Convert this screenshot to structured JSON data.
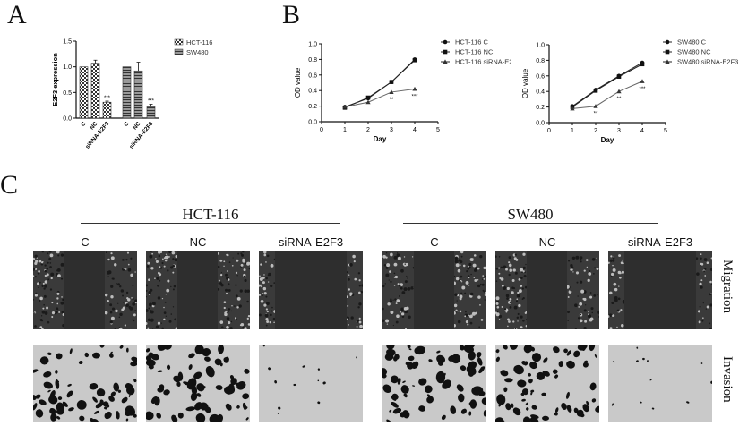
{
  "panels": {
    "a": "A",
    "b": "B",
    "c": "C"
  },
  "chart_data": [
    {
      "type": "bar",
      "ylabel": "E2F3 expression",
      "ylim": [
        0,
        1.5
      ],
      "yticks": [
        "0.0",
        "0.5",
        "1.0",
        "1.5"
      ],
      "categories": [
        "C",
        "NC",
        "siRNA-E2F3"
      ],
      "series": [
        {
          "name": "HCT-116",
          "values": [
            1.0,
            1.07,
            0.31
          ],
          "errors": [
            0,
            0.06,
            0.02
          ],
          "annotations": [
            "",
            "",
            "***"
          ]
        },
        {
          "name": "SW480",
          "values": [
            1.0,
            0.92,
            0.22
          ],
          "errors": [
            0,
            0.17,
            0.05
          ],
          "annotations": [
            "",
            "",
            "***"
          ]
        }
      ],
      "legend": "top-right"
    },
    {
      "type": "line",
      "xlabel": "Day",
      "ylabel": "OD value",
      "xlim": [
        0,
        5
      ],
      "ylim": [
        0,
        1.0
      ],
      "xticks": [
        "0",
        "1",
        "2",
        "3",
        "4",
        "5"
      ],
      "yticks": [
        "0.0",
        "0.2",
        "0.4",
        "0.6",
        "0.8",
        "1.0"
      ],
      "x": [
        1,
        2,
        3,
        4
      ],
      "series": [
        {
          "name": "HCT-116 C",
          "marker": "circle",
          "values": [
            0.19,
            0.3,
            0.51,
            0.8
          ]
        },
        {
          "name": "HCT-116 NC",
          "marker": "square",
          "values": [
            0.18,
            0.31,
            0.51,
            0.79
          ]
        },
        {
          "name": "HCT-116 siRNA-E2F3",
          "marker": "triangle",
          "values": [
            0.19,
            0.25,
            0.38,
            0.42
          ]
        }
      ],
      "annotations": [
        "",
        "",
        "**",
        "***"
      ],
      "legend": "right"
    },
    {
      "type": "line",
      "xlabel": "Day",
      "ylabel": "OD value",
      "xlim": [
        0,
        5
      ],
      "ylim": [
        0,
        1.0
      ],
      "xticks": [
        "0",
        "1",
        "2",
        "3",
        "4",
        "5"
      ],
      "yticks": [
        "0.0",
        "0.2",
        "0.4",
        "0.6",
        "0.8",
        "1.0"
      ],
      "x": [
        1,
        2,
        3,
        4
      ],
      "series": [
        {
          "name": "SW480 C",
          "marker": "circle",
          "values": [
            0.21,
            0.42,
            0.6,
            0.77
          ]
        },
        {
          "name": "SW480 NC",
          "marker": "square",
          "values": [
            0.2,
            0.41,
            0.59,
            0.75
          ]
        },
        {
          "name": "SW480 siRNA-E2F3",
          "marker": "triangle",
          "values": [
            0.18,
            0.21,
            0.4,
            0.53
          ]
        }
      ],
      "annotations": [
        "",
        "**",
        "**",
        "***"
      ],
      "legend": "right"
    }
  ],
  "c": {
    "groups": [
      "HCT-116",
      "SW480"
    ],
    "columns": [
      "C",
      "NC",
      "siRNA-E2F3",
      "C",
      "NC",
      "siRNA-E2F3"
    ],
    "rows": [
      "Migration",
      "Invasion"
    ]
  }
}
